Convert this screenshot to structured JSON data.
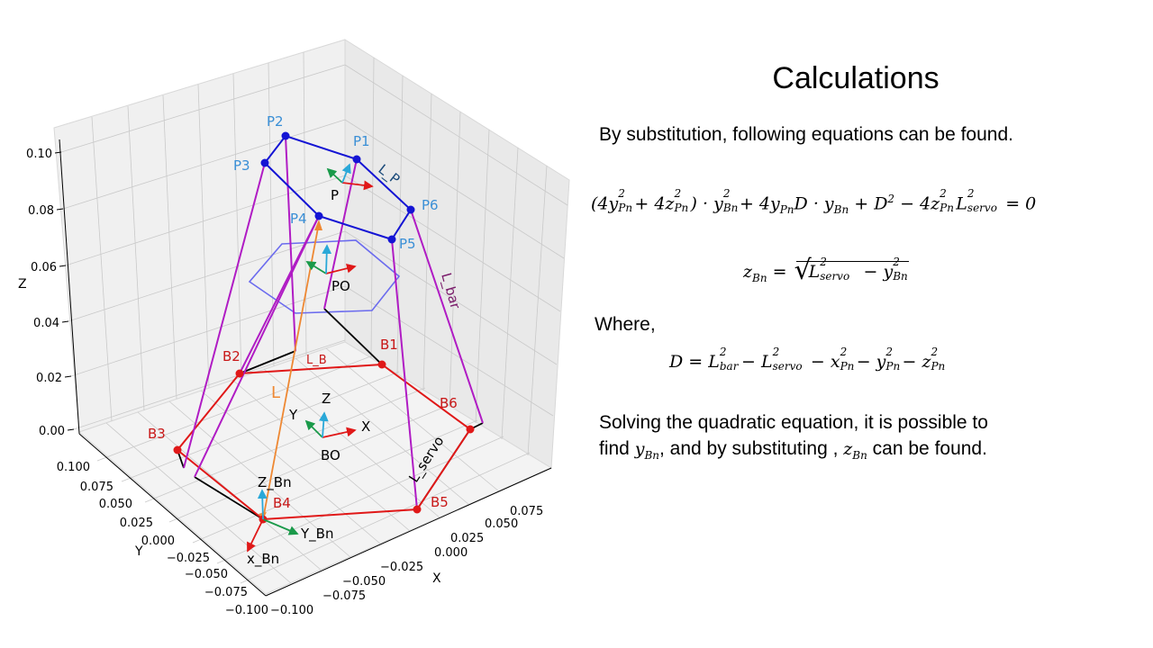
{
  "plot": {
    "z_axis_label": "Z",
    "y_axis_label": "Y",
    "x_axis_label": "X",
    "z_ticks": [
      "0.00",
      "0.02",
      "0.04",
      "0.06",
      "0.08",
      "0.10"
    ],
    "y_ticks": [
      "0.100",
      "0.075",
      "0.050",
      "0.025",
      "0.000",
      "−0.025",
      "−0.050",
      "−0.075",
      "−0.100"
    ],
    "x_ticks": [
      "−0.100",
      "−0.075",
      "−0.050",
      "−0.025",
      "0.000",
      "0.025",
      "0.050",
      "0.075"
    ],
    "labels": {
      "p1": "P1",
      "p2": "P2",
      "p3": "P3",
      "p4": "P4",
      "p5": "P5",
      "p6": "P6",
      "b1": "B1",
      "b2": "B2",
      "b3": "B3",
      "b4": "B4",
      "b5": "B5",
      "b6": "B6",
      "l_p": "L_P",
      "l_bar": "L_bar",
      "l_b": "L_B",
      "l": "L",
      "l_servo": "L_servo",
      "p": "P",
      "po": "PO",
      "bo": "BO",
      "bo_x": "X",
      "bo_y": "Y",
      "bo_z": "Z",
      "z_bn": "Z_Bn",
      "y_bn": "Y_Bn",
      "x_bn": "x_Bn"
    },
    "colors": {
      "top_platform": "#1414d4",
      "base": "#e01818",
      "bar": "#b01cc4",
      "servo": "#000000",
      "vector_l": "#ee8833",
      "hexagon": "#6b6bee",
      "p_label": "#3a8fd6",
      "b_label": "#c81818",
      "bar_label": "#7a1a6a",
      "frame_x": "#e01818",
      "frame_y": "#1a9a4a",
      "frame_z": "#2aa8d8"
    }
  },
  "panel": {
    "title": "Calculations",
    "intro": "By substitution, following equations can be found.",
    "where": "Where,",
    "solve_line1": "Solving the quadratic equation, it is possible to",
    "solve_a": "find ",
    "solve_b": ", and by substituting , ",
    "solve_c": " can be found."
  }
}
